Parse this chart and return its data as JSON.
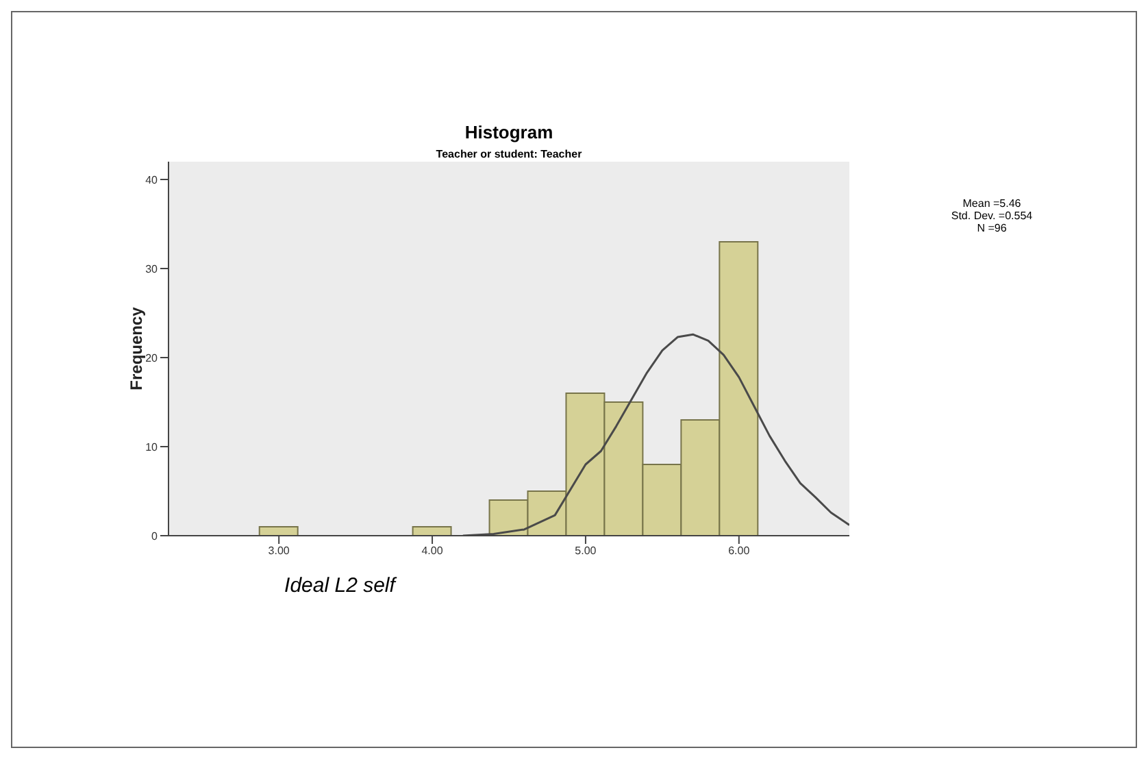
{
  "chart_data": {
    "type": "histogram",
    "title": "Histogram",
    "subtitle": "Teacher or student: Teacher",
    "xlabel": "Ideal L2 self",
    "ylabel": "Frequency",
    "bins": [
      2.875,
      3.125,
      3.375,
      3.625,
      3.875,
      4.125,
      4.375,
      4.625,
      4.875,
      5.125,
      5.375,
      5.625,
      5.875,
      6.125
    ],
    "values": [
      1,
      0,
      0,
      0,
      1,
      0,
      4,
      5,
      16,
      15,
      8,
      13,
      33
    ],
    "color": "#d5d196",
    "series": [
      {
        "type": "line",
        "color": "#4a4a4a",
        "x": [
          4.2,
          4.4,
          4.6,
          4.8,
          5.0,
          5.1,
          5.2,
          5.3,
          5.4,
          5.5,
          5.6,
          5.7,
          5.8,
          5.9,
          6.0,
          6.1,
          6.2,
          6.3,
          6.4,
          6.5,
          6.6,
          6.72
        ],
        "values": [
          0,
          0.2,
          0.7,
          2.3,
          8.0,
          9.5,
          12.3,
          15.3,
          18.3,
          20.8,
          22.3,
          22.6,
          21.9,
          20.3,
          17.8,
          14.5,
          11.2,
          8.4,
          5.9,
          4.3,
          2.6,
          1.2
        ]
      }
    ],
    "xlim": [
      2.28,
      6.72
    ],
    "ylim": [
      0,
      42
    ],
    "xticks": [
      {
        "value": 3,
        "label": "3.00"
      },
      {
        "value": 4,
        "label": "4.00"
      },
      {
        "value": 5,
        "label": "5.00"
      },
      {
        "value": 6,
        "label": "6.00"
      }
    ],
    "yticks": [
      0,
      10,
      20,
      30,
      40
    ],
    "annotations": [
      "Mean =5.46",
      "Std. Dev. =0.554",
      "N =96"
    ],
    "grid": false,
    "legend": false
  }
}
